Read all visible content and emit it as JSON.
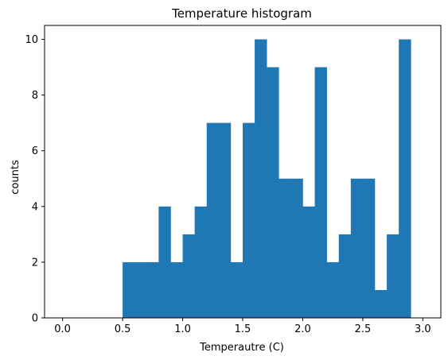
{
  "chart_data": {
    "type": "bar",
    "title": "Temperature histogram",
    "xlabel": "Temperautre (C)",
    "ylabel": "counts",
    "xlim": [
      -0.15,
      3.15
    ],
    "ylim": [
      0,
      10.5
    ],
    "x_ticks": [
      0.0,
      0.5,
      1.0,
      1.5,
      2.0,
      2.5,
      3.0
    ],
    "x_tick_labels": [
      "0.0",
      "0.5",
      "1.0",
      "1.5",
      "2.0",
      "2.5",
      "3.0"
    ],
    "y_ticks": [
      0,
      2,
      4,
      6,
      8,
      10
    ],
    "y_tick_labels": [
      "0",
      "2",
      "4",
      "6",
      "8",
      "10"
    ],
    "bin_width": 0.1,
    "bins": [
      {
        "x0": 0.5,
        "x1": 0.6,
        "count": 2
      },
      {
        "x0": 0.6,
        "x1": 0.7,
        "count": 2
      },
      {
        "x0": 0.7,
        "x1": 0.8,
        "count": 2
      },
      {
        "x0": 0.8,
        "x1": 0.9,
        "count": 4
      },
      {
        "x0": 0.9,
        "x1": 1.0,
        "count": 2
      },
      {
        "x0": 1.0,
        "x1": 1.1,
        "count": 3
      },
      {
        "x0": 1.1,
        "x1": 1.2,
        "count": 4
      },
      {
        "x0": 1.2,
        "x1": 1.3,
        "count": 7
      },
      {
        "x0": 1.3,
        "x1": 1.4,
        "count": 7
      },
      {
        "x0": 1.4,
        "x1": 1.5,
        "count": 2
      },
      {
        "x0": 1.5,
        "x1": 1.6,
        "count": 7
      },
      {
        "x0": 1.6,
        "x1": 1.7,
        "count": 10
      },
      {
        "x0": 1.7,
        "x1": 1.8,
        "count": 9
      },
      {
        "x0": 1.8,
        "x1": 1.9,
        "count": 5
      },
      {
        "x0": 1.9,
        "x1": 2.0,
        "count": 5
      },
      {
        "x0": 2.0,
        "x1": 2.1,
        "count": 4
      },
      {
        "x0": 2.1,
        "x1": 2.2,
        "count": 9
      },
      {
        "x0": 2.2,
        "x1": 2.3,
        "count": 2
      },
      {
        "x0": 2.3,
        "x1": 2.4,
        "count": 3
      },
      {
        "x0": 2.4,
        "x1": 2.5,
        "count": 5
      },
      {
        "x0": 2.5,
        "x1": 2.6,
        "count": 5
      },
      {
        "x0": 2.6,
        "x1": 2.7,
        "count": 1
      },
      {
        "x0": 2.7,
        "x1": 2.8,
        "count": 3
      },
      {
        "x0": 2.8,
        "x1": 2.9,
        "count": 10
      }
    ],
    "grid": false,
    "bar_color": "#1f77b4"
  }
}
